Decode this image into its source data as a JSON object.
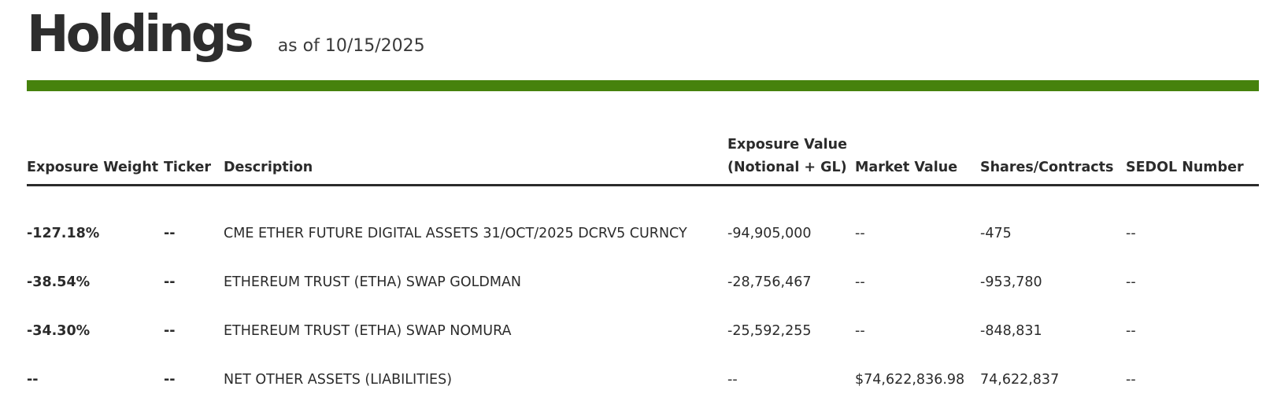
{
  "header": {
    "title": "Holdings",
    "as_of": "as of 10/15/2025",
    "accent_color": "#46820d"
  },
  "table": {
    "columns": [
      {
        "line1": "Exposure Weight",
        "line2": ""
      },
      {
        "line1": "Ticker",
        "line2": ""
      },
      {
        "line1": "Description",
        "line2": ""
      },
      {
        "line1": "Exposure Value",
        "line2": "(Notional + GL)"
      },
      {
        "line1": "Market Value",
        "line2": ""
      },
      {
        "line1": "Shares/Contracts",
        "line2": ""
      },
      {
        "line1": "SEDOL Number",
        "line2": ""
      }
    ],
    "rows": [
      {
        "exposure_weight": "-127.18%",
        "ticker": "--",
        "description": "CME ETHER FUTURE DIGITAL ASSETS 31/OCT/2025 DCRV5 CURNCY",
        "exposure_value": "-94,905,000",
        "market_value": "--",
        "shares": "-475",
        "sedol": "--"
      },
      {
        "exposure_weight": "-38.54%",
        "ticker": "--",
        "description": "ETHEREUM TRUST (ETHA) SWAP GOLDMAN",
        "exposure_value": "-28,756,467",
        "market_value": "--",
        "shares": "-953,780",
        "sedol": "--"
      },
      {
        "exposure_weight": "-34.30%",
        "ticker": "--",
        "description": "ETHEREUM TRUST (ETHA) SWAP NOMURA",
        "exposure_value": "-25,592,255",
        "market_value": "--",
        "shares": "-848,831",
        "sedol": "--"
      },
      {
        "exposure_weight": "--",
        "ticker": "--",
        "description": "NET OTHER ASSETS (LIABILITIES)",
        "exposure_value": "--",
        "market_value": "$74,622,836.98",
        "shares": "74,622,837",
        "sedol": "--"
      }
    ]
  }
}
